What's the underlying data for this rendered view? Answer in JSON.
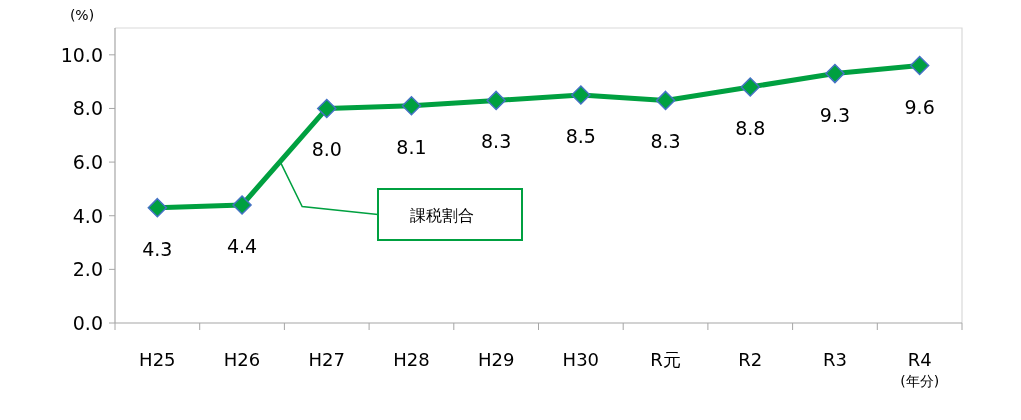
{
  "chart_data": {
    "type": "line",
    "ylabel": "(%)",
    "xlabel": "(年分)",
    "categories": [
      "H25",
      "H26",
      "H27",
      "H28",
      "H29",
      "H30",
      "R元",
      "R2",
      "R3",
      "R4"
    ],
    "series": [
      {
        "name": "課税割合",
        "color": "#00a040",
        "values": [
          4.3,
          4.4,
          8.0,
          8.1,
          8.3,
          8.5,
          8.3,
          8.8,
          9.3,
          9.6
        ],
        "value_labels": [
          "4.3",
          "4.4",
          "8.0",
          "8.1",
          "8.3",
          "8.5",
          "8.3",
          "8.8",
          "9.3",
          "9.6"
        ]
      }
    ],
    "ylim": [
      0,
      11
    ],
    "yticks": [
      {
        "value": 0,
        "label": "0.0"
      },
      {
        "value": 2,
        "label": "2.0"
      },
      {
        "value": 4,
        "label": "4.0"
      },
      {
        "value": 6,
        "label": "6.0"
      },
      {
        "value": 8,
        "label": "8.0"
      },
      {
        "value": 10,
        "label": "10.0"
      }
    ],
    "marker": "diamond",
    "line_style": "solid",
    "grid": false
  }
}
